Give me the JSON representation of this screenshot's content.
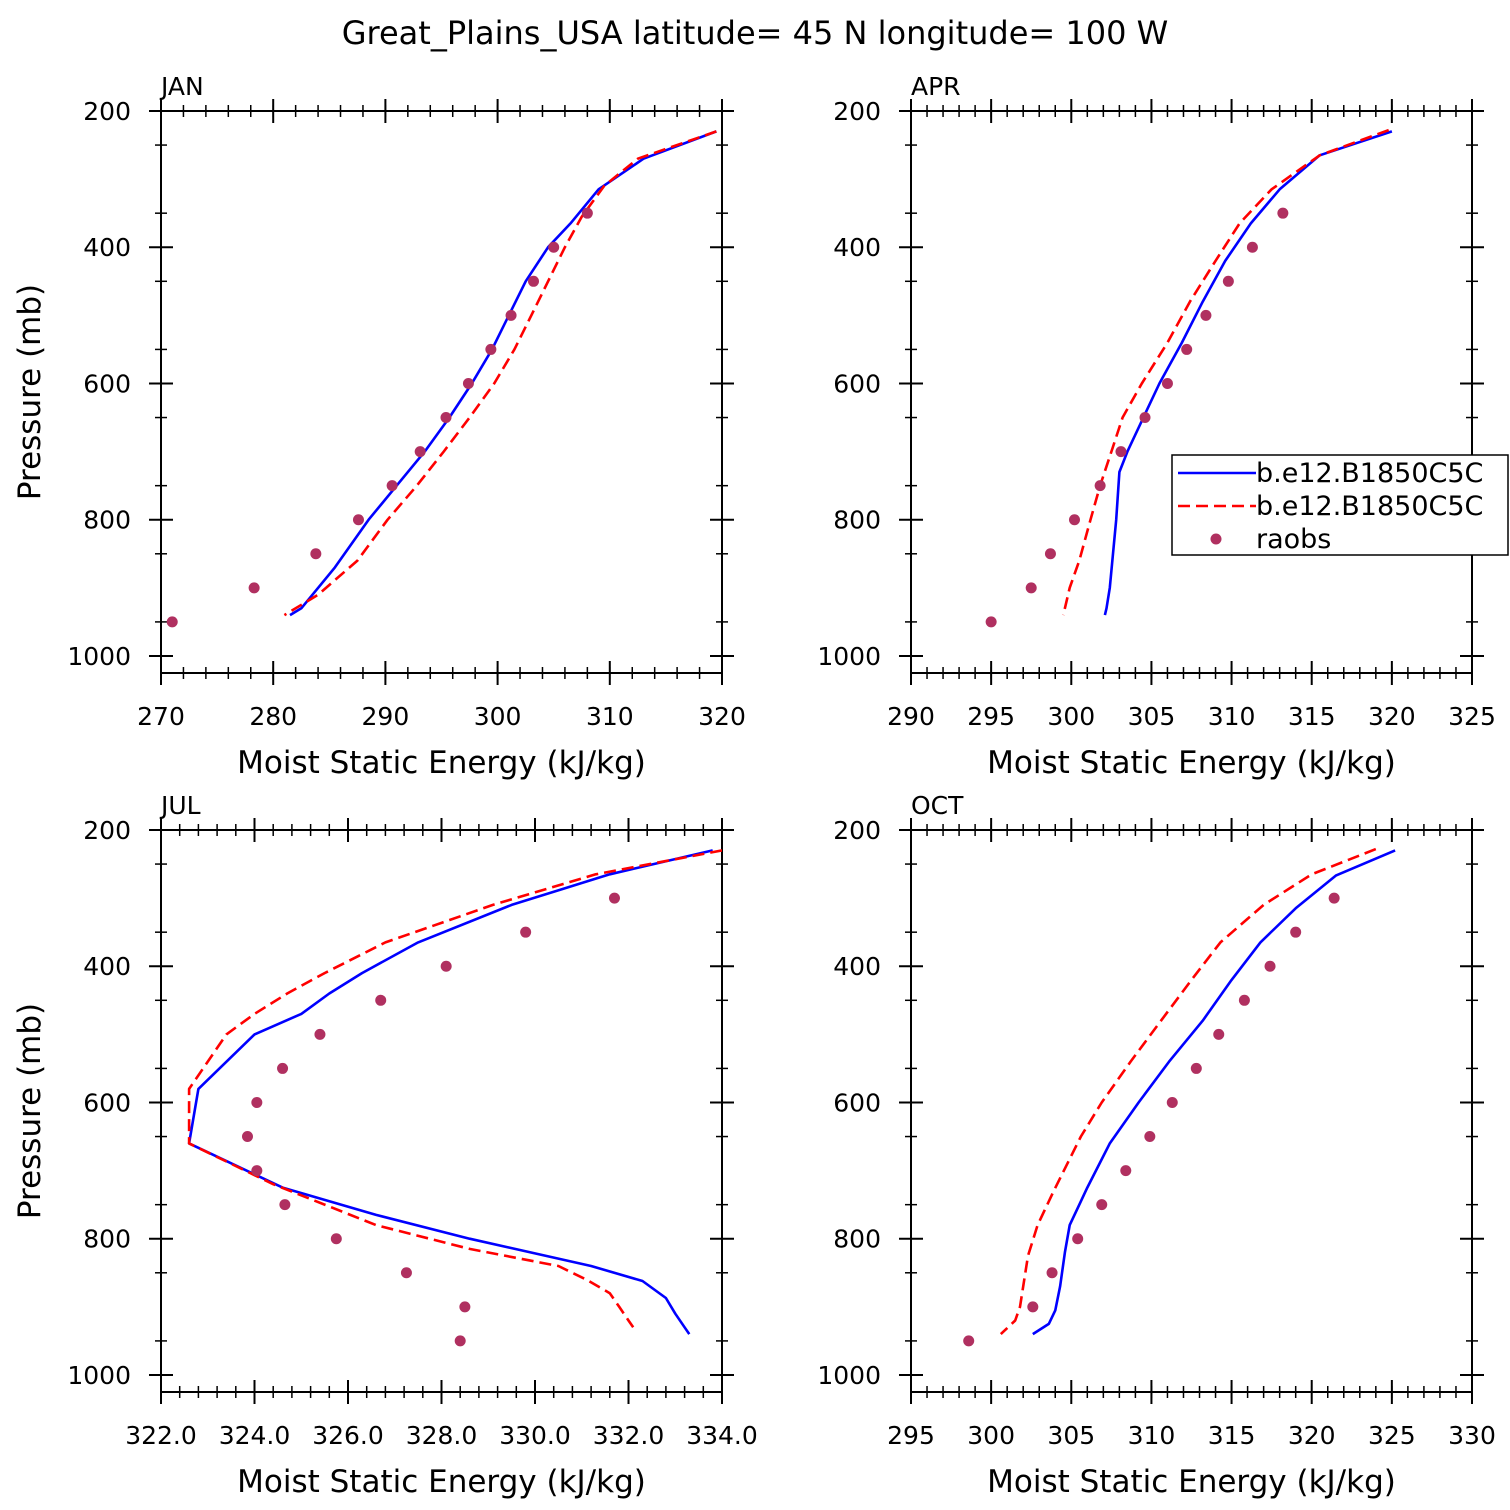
{
  "title": "Great_Plains_USA   latitude= 45 N longitude= 100 W",
  "colors": {
    "model1": "#0000ff",
    "model2": "#ff0000",
    "raobs": "#b03060"
  },
  "legend": {
    "panel": "APR",
    "entries": [
      {
        "label": "b.e12.B1850C5C",
        "style": "solid",
        "color": "#0000ff"
      },
      {
        "label": "b.e12.B1850C5C",
        "style": "dashed",
        "color": "#ff0000"
      },
      {
        "label": "raobs",
        "style": "marker",
        "color": "#b03060"
      }
    ]
  },
  "chart_data": [
    {
      "type": "line",
      "label": "JAN",
      "xlabel": "Moist Static Energy (kJ/kg)",
      "ylabel": "Pressure (mb)",
      "xlim": [
        270,
        320
      ],
      "ylim": [
        200,
        1000
      ],
      "y_inverted": true,
      "xticks": [
        270,
        280,
        290,
        300,
        310,
        320
      ],
      "xtick_labels": [
        "270",
        "280",
        "290",
        "300",
        "310",
        "320"
      ],
      "x_minor_step": 2,
      "yticks": [
        200,
        400,
        600,
        800,
        1000
      ],
      "ytick_labels": [
        "200",
        "400",
        "600",
        "800",
        "1000"
      ],
      "series": [
        {
          "style": "solid",
          "color": "#0000ff",
          "points": [
            [
              319.5,
              230
            ],
            [
              313,
              270
            ],
            [
              309,
              315
            ],
            [
              306.5,
              365
            ],
            [
              304.5,
              400
            ],
            [
              302.5,
              450
            ],
            [
              301,
              500
            ],
            [
              299.5,
              550
            ],
            [
              297.7,
              600
            ],
            [
              295.7,
              650
            ],
            [
              293.5,
              700
            ],
            [
              291,
              750
            ],
            [
              288.5,
              800
            ],
            [
              285.5,
              870
            ],
            [
              282.5,
              930
            ],
            [
              281.5,
              940
            ]
          ]
        },
        {
          "style": "dashed",
          "color": "#ff0000",
          "points": [
            [
              319.5,
              230
            ],
            [
              312.5,
              270
            ],
            [
              309.5,
              310
            ],
            [
              307.5,
              355
            ],
            [
              306,
              400
            ],
            [
              304.5,
              450
            ],
            [
              303,
              500
            ],
            [
              301.5,
              550
            ],
            [
              299.7,
              600
            ],
            [
              297.5,
              650
            ],
            [
              295.2,
              700
            ],
            [
              292.8,
              750
            ],
            [
              290.2,
              800
            ],
            [
              287.5,
              860
            ],
            [
              284,
              910
            ],
            [
              281,
              940
            ]
          ]
        },
        {
          "style": "marker",
          "color": "#b03060",
          "points": [
            [
              308,
              350
            ],
            [
              305,
              400
            ],
            [
              303.2,
              450
            ],
            [
              301.2,
              500
            ],
            [
              299.4,
              550
            ],
            [
              297.4,
              600
            ],
            [
              295.4,
              650
            ],
            [
              293.1,
              700
            ],
            [
              290.6,
              750
            ],
            [
              287.6,
              800
            ],
            [
              283.8,
              850
            ],
            [
              278.3,
              900
            ],
            [
              271,
              950
            ]
          ]
        }
      ]
    },
    {
      "type": "line",
      "label": "APR",
      "xlabel": "Moist Static Energy (kJ/kg)",
      "ylabel": "",
      "xlim": [
        290,
        325
      ],
      "ylim": [
        200,
        1000
      ],
      "y_inverted": true,
      "xticks": [
        290,
        295,
        300,
        305,
        310,
        315,
        320,
        325
      ],
      "xtick_labels": [
        "290",
        "295",
        "300",
        "305",
        "310",
        "315",
        "320",
        "325"
      ],
      "x_minor_step": 1,
      "yticks": [
        200,
        400,
        600,
        800,
        1000
      ],
      "ytick_labels": [
        "200",
        "400",
        "600",
        "800",
        "1000"
      ],
      "series": [
        {
          "style": "solid",
          "color": "#0000ff",
          "points": [
            [
              320,
              230
            ],
            [
              315.5,
              265
            ],
            [
              313,
              315
            ],
            [
              311.2,
              365
            ],
            [
              309.6,
              420
            ],
            [
              308.2,
              480
            ],
            [
              306.9,
              540
            ],
            [
              305.5,
              600
            ],
            [
              304.5,
              650
            ],
            [
              303.5,
              700
            ],
            [
              303,
              730
            ],
            [
              302.8,
              800
            ],
            [
              302.6,
              850
            ],
            [
              302.4,
              900
            ],
            [
              302.2,
              930
            ],
            [
              302.1,
              940
            ]
          ]
        },
        {
          "style": "dashed",
          "color": "#ff0000",
          "points": [
            [
              319.8,
              228
            ],
            [
              315.5,
              265
            ],
            [
              312.5,
              315
            ],
            [
              310.5,
              365
            ],
            [
              309,
              420
            ],
            [
              307.4,
              480
            ],
            [
              306,
              540
            ],
            [
              304.4,
              600
            ],
            [
              303.2,
              650
            ],
            [
              302.5,
              700
            ],
            [
              301.8,
              750
            ],
            [
              301.2,
              800
            ],
            [
              300.5,
              860
            ],
            [
              299.9,
              900
            ],
            [
              299.5,
              940
            ]
          ]
        },
        {
          "style": "marker",
          "color": "#b03060",
          "points": [
            [
              313.2,
              350
            ],
            [
              311.3,
              400
            ],
            [
              309.8,
              450
            ],
            [
              308.4,
              500
            ],
            [
              307.2,
              550
            ],
            [
              306,
              600
            ],
            [
              304.6,
              650
            ],
            [
              303.1,
              700
            ],
            [
              301.8,
              750
            ],
            [
              300.2,
              800
            ],
            [
              298.7,
              850
            ],
            [
              297.5,
              900
            ],
            [
              295,
              950
            ]
          ]
        }
      ]
    },
    {
      "type": "line",
      "label": "JUL",
      "xlabel": "Moist Static Energy (kJ/kg)",
      "ylabel": "Pressure (mb)",
      "xlim": [
        322,
        334
      ],
      "ylim": [
        200,
        1000
      ],
      "y_inverted": true,
      "xticks": [
        322,
        324,
        326,
        328,
        330,
        332,
        334
      ],
      "xtick_labels": [
        "322.0",
        "324.0",
        "326.0",
        "328.0",
        "330.0",
        "332.0",
        "334.0"
      ],
      "x_minor_step": 0.4,
      "yticks": [
        200,
        400,
        600,
        800,
        1000
      ],
      "ytick_labels": [
        "200",
        "400",
        "600",
        "800",
        "1000"
      ],
      "series": [
        {
          "style": "solid",
          "color": "#0000ff",
          "points": [
            [
              333.8,
              230
            ],
            [
              331.6,
              265
            ],
            [
              329.5,
              310
            ],
            [
              327.5,
              365
            ],
            [
              326.3,
              410
            ],
            [
              325.6,
              440
            ],
            [
              325,
              470
            ],
            [
              324,
              500
            ],
            [
              322.8,
              580
            ],
            [
              322.6,
              660
            ],
            [
              324.6,
              725
            ],
            [
              326.6,
              765
            ],
            [
              328.6,
              800
            ],
            [
              331.2,
              840
            ],
            [
              332.3,
              862
            ],
            [
              332.8,
              887
            ],
            [
              333,
              910
            ],
            [
              333.2,
              930
            ],
            [
              333.3,
              940
            ]
          ]
        },
        {
          "style": "dashed",
          "color": "#ff0000",
          "points": [
            [
              334,
              230
            ],
            [
              331.3,
              265
            ],
            [
              329.1,
              310
            ],
            [
              326.8,
              365
            ],
            [
              325.5,
              410
            ],
            [
              324.7,
              440
            ],
            [
              324,
              470
            ],
            [
              323.4,
              500
            ],
            [
              322.6,
              580
            ],
            [
              322.6,
              660
            ],
            [
              324.4,
              720
            ],
            [
              326.6,
              780
            ],
            [
              328.6,
              815
            ],
            [
              330.5,
              840
            ],
            [
              331.1,
              860
            ],
            [
              331.6,
              880
            ],
            [
              331.8,
              900
            ],
            [
              332,
              920
            ],
            [
              332.1,
              930
            ]
          ]
        },
        {
          "style": "marker",
          "color": "#b03060",
          "points": [
            [
              331.7,
              300
            ],
            [
              329.8,
              350
            ],
            [
              328.1,
              400
            ],
            [
              326.7,
              450
            ],
            [
              325.4,
              500
            ],
            [
              324.6,
              550
            ],
            [
              324.05,
              600
            ],
            [
              323.85,
              650
            ],
            [
              324.05,
              700
            ],
            [
              324.65,
              750
            ],
            [
              325.75,
              800
            ],
            [
              327.25,
              850
            ],
            [
              328.5,
              900
            ],
            [
              328.4,
              950
            ]
          ]
        }
      ]
    },
    {
      "type": "line",
      "label": "OCT",
      "xlabel": "Moist Static Energy (kJ/kg)",
      "ylabel": "",
      "xlim": [
        295,
        330
      ],
      "ylim": [
        200,
        1000
      ],
      "y_inverted": true,
      "xticks": [
        295,
        300,
        305,
        310,
        315,
        320,
        325,
        330
      ],
      "xtick_labels": [
        "295",
        "300",
        "305",
        "310",
        "315",
        "320",
        "325",
        "330"
      ],
      "x_minor_step": 1,
      "yticks": [
        200,
        400,
        600,
        800,
        1000
      ],
      "ytick_labels": [
        "200",
        "400",
        "600",
        "800",
        "1000"
      ],
      "series": [
        {
          "style": "solid",
          "color": "#0000ff",
          "points": [
            [
              325.2,
              230
            ],
            [
              321.5,
              267
            ],
            [
              319,
              315
            ],
            [
              316.8,
              365
            ],
            [
              315,
              420
            ],
            [
              313.2,
              480
            ],
            [
              311.1,
              540
            ],
            [
              309.2,
              600
            ],
            [
              307.4,
              660
            ],
            [
              306,
              725
            ],
            [
              305.5,
              750
            ],
            [
              304.9,
              780
            ],
            [
              304.6,
              820
            ],
            [
              304.3,
              870
            ],
            [
              304,
              905
            ],
            [
              303.6,
              925
            ],
            [
              302.6,
              940
            ]
          ]
        },
        {
          "style": "dashed",
          "color": "#ff0000",
          "points": [
            [
              324,
              228
            ],
            [
              320,
              265
            ],
            [
              317,
              310
            ],
            [
              314.3,
              365
            ],
            [
              312.5,
              420
            ],
            [
              310.6,
              480
            ],
            [
              308.7,
              540
            ],
            [
              306.9,
              600
            ],
            [
              305.6,
              650
            ],
            [
              303.9,
              730
            ],
            [
              302.9,
              780
            ],
            [
              302.3,
              825
            ],
            [
              302,
              870
            ],
            [
              301.8,
              900
            ],
            [
              301.5,
              920
            ],
            [
              300.6,
              940
            ]
          ]
        },
        {
          "style": "marker",
          "color": "#b03060",
          "points": [
            [
              321.4,
              300
            ],
            [
              319,
              350
            ],
            [
              317.4,
              400
            ],
            [
              315.8,
              450
            ],
            [
              314.2,
              500
            ],
            [
              312.8,
              550
            ],
            [
              311.3,
              600
            ],
            [
              309.9,
              650
            ],
            [
              308.4,
              700
            ],
            [
              306.9,
              750
            ],
            [
              305.4,
              800
            ],
            [
              303.8,
              850
            ],
            [
              302.6,
              900
            ],
            [
              298.6,
              950
            ]
          ]
        }
      ]
    }
  ]
}
